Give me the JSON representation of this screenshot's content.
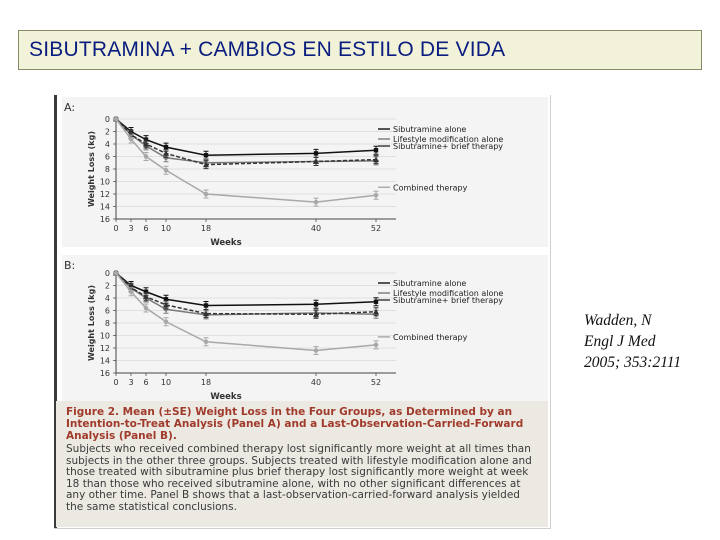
{
  "slide": {
    "title": "SIBUTRAMINA + CAMBIOS EN ESTILO DE VIDA",
    "citation": [
      "Wadden,  N",
      "Engl J Med",
      "2005; 353:2111"
    ]
  },
  "figure": {
    "caption_heading": "Figure 2. Mean (±SE) Weight Loss in the Four Groups, as Determined by an Intention-to-Treat Analysis (Panel A) and a Last-Observation-Carried-Forward Analysis (Panel B).",
    "caption_body": "Subjects who received combined therapy lost significantly more weight at all times than subjects in the other three groups. Subjects treated with lifestyle modification alone and those treated with sibutramine plus brief therapy lost significantly more weight at week 18 than those who received sibutramine alone, with no other significant differences at any other time. Panel B shows that a last-observation-carried-forward analysis yielded the same statistical conclusions."
  },
  "colors": {
    "title_text": "#0b1e80",
    "title_bg": "#f2f2d8",
    "caption_bg": "#ece9e3",
    "caption_heading": "#a03a2a",
    "panel_bg": "#f4f4f4",
    "series_sibutramine": "#111111",
    "series_lifestyle": "#7a7a7a",
    "series_sib_brief": "#333333",
    "series_combined": "#a8a8a8"
  },
  "chart_data": [
    {
      "type": "line",
      "panel": "A",
      "xlabel": "Weeks",
      "ylabel": "Weight Loss (kg)",
      "x": [
        0,
        3,
        6,
        10,
        18,
        40,
        52
      ],
      "xticks": [
        "0",
        "3",
        "6",
        "10",
        "18",
        "40",
        "52"
      ],
      "yticks": [
        "0",
        "2",
        "4",
        "6",
        "8",
        "10",
        "12",
        "14",
        "16"
      ],
      "ylim": [
        0,
        16
      ],
      "y_inverted": true,
      "grid": true,
      "series": [
        {
          "name": "Sibutramine alone",
          "values": [
            0,
            2.0,
            3.3,
            4.5,
            5.8,
            5.5,
            5.0
          ]
        },
        {
          "name": "Lifestyle modification alone",
          "values": [
            0,
            2.5,
            4.3,
            6.2,
            7.0,
            6.8,
            6.7
          ]
        },
        {
          "name": "Sibutramine+ brief therapy",
          "values": [
            0,
            2.5,
            4.0,
            5.5,
            7.3,
            6.8,
            6.5
          ]
        },
        {
          "name": "Combined therapy",
          "values": [
            0,
            3.2,
            6.0,
            8.2,
            12.0,
            13.3,
            12.2
          ]
        }
      ],
      "legend_placement": "right"
    },
    {
      "type": "line",
      "panel": "B",
      "xlabel": "Weeks",
      "ylabel": "Weight Loss (kg)",
      "x": [
        0,
        3,
        6,
        10,
        18,
        40,
        52
      ],
      "xticks": [
        "0",
        "3",
        "6",
        "10",
        "18",
        "40",
        "52"
      ],
      "yticks": [
        "0",
        "2",
        "4",
        "6",
        "8",
        "10",
        "12",
        "14",
        "16"
      ],
      "ylim": [
        0,
        16
      ],
      "y_inverted": true,
      "grid": true,
      "series": [
        {
          "name": "Sibutramine alone",
          "values": [
            0,
            2.0,
            3.0,
            4.2,
            5.2,
            5.0,
            4.6
          ]
        },
        {
          "name": "Lifestyle modification alone",
          "values": [
            0,
            2.4,
            4.0,
            5.8,
            6.7,
            6.4,
            6.6
          ]
        },
        {
          "name": "Sibutramine+ brief therapy",
          "values": [
            0,
            2.3,
            3.8,
            5.1,
            6.5,
            6.6,
            6.2
          ]
        },
        {
          "name": "Combined therapy",
          "values": [
            0,
            3.0,
            5.6,
            7.8,
            11.0,
            12.4,
            11.5
          ]
        }
      ],
      "legend_placement": "right"
    }
  ]
}
